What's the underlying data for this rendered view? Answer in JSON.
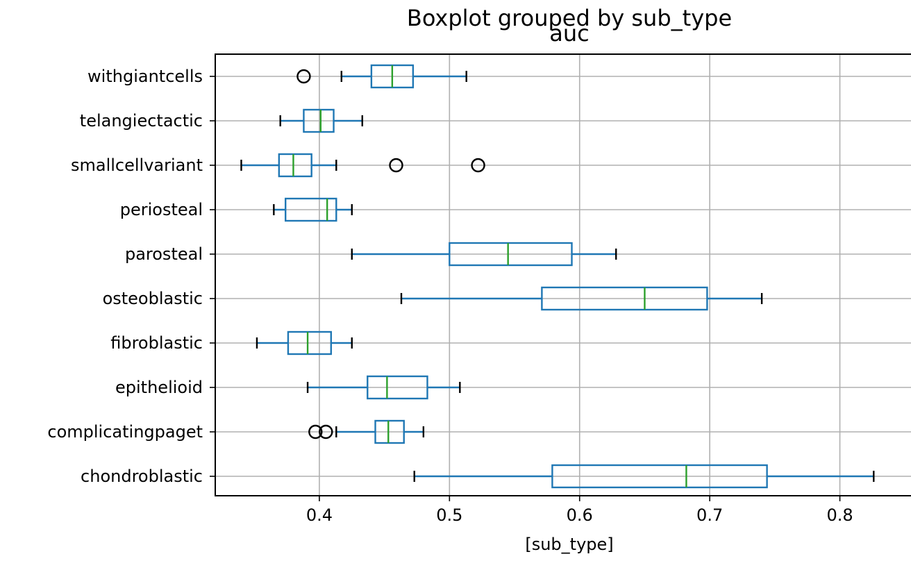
{
  "chart_data": {
    "type": "boxplot",
    "orientation": "horizontal",
    "title": "Boxplot grouped by sub_type",
    "subtitle": "auc",
    "xlabel": "[sub_type]",
    "ylabel": "",
    "xlim": [
      0.32,
      0.86
    ],
    "xticks": [
      {
        "value": 0.4,
        "label": "0.4"
      },
      {
        "value": 0.5,
        "label": "0.5"
      },
      {
        "value": 0.6,
        "label": "0.6"
      },
      {
        "value": 0.7,
        "label": "0.7"
      },
      {
        "value": 0.8,
        "label": "0.8"
      }
    ],
    "grid": true,
    "colors": {
      "box": "#1f77b4",
      "median": "#2ca02c",
      "whisker_cap": "#000000",
      "flier": "#000000",
      "grid": "#b0b0b0",
      "axes": "#000000"
    },
    "categories": [
      "withgiantcells",
      "telangiectactic",
      "smallcellvariant",
      "periosteal",
      "parosteal",
      "osteoblastic",
      "fibroblastic",
      "epithelioid",
      "complicatingpaget",
      "chondroblastic"
    ],
    "boxes": [
      {
        "category": "withgiantcells",
        "whislo": 0.417,
        "q1": 0.44,
        "med": 0.456,
        "q3": 0.472,
        "whishi": 0.513,
        "fliers": [
          0.388
        ]
      },
      {
        "category": "telangiectactic",
        "whislo": 0.37,
        "q1": 0.388,
        "med": 0.401,
        "q3": 0.411,
        "whishi": 0.433,
        "fliers": []
      },
      {
        "category": "smallcellvariant",
        "whislo": 0.34,
        "q1": 0.369,
        "med": 0.38,
        "q3": 0.394,
        "whishi": 0.413,
        "fliers": [
          0.459,
          0.522
        ]
      },
      {
        "category": "periosteal",
        "whislo": 0.365,
        "q1": 0.374,
        "med": 0.406,
        "q3": 0.413,
        "whishi": 0.425,
        "fliers": []
      },
      {
        "category": "parosteal",
        "whislo": 0.425,
        "q1": 0.5,
        "med": 0.545,
        "q3": 0.594,
        "whishi": 0.628,
        "fliers": []
      },
      {
        "category": "osteoblastic",
        "whislo": 0.463,
        "q1": 0.571,
        "med": 0.65,
        "q3": 0.698,
        "whishi": 0.74,
        "fliers": []
      },
      {
        "category": "fibroblastic",
        "whislo": 0.352,
        "q1": 0.376,
        "med": 0.391,
        "q3": 0.409,
        "whishi": 0.425,
        "fliers": []
      },
      {
        "category": "epithelioid",
        "whislo": 0.391,
        "q1": 0.437,
        "med": 0.452,
        "q3": 0.483,
        "whishi": 0.508,
        "fliers": []
      },
      {
        "category": "complicatingpaget",
        "whislo": 0.413,
        "q1": 0.443,
        "med": 0.453,
        "q3": 0.465,
        "whishi": 0.48,
        "fliers": [
          0.397,
          0.405
        ]
      },
      {
        "category": "chondroblastic",
        "whislo": 0.473,
        "q1": 0.579,
        "med": 0.682,
        "q3": 0.744,
        "whishi": 0.826,
        "fliers": []
      }
    ]
  }
}
